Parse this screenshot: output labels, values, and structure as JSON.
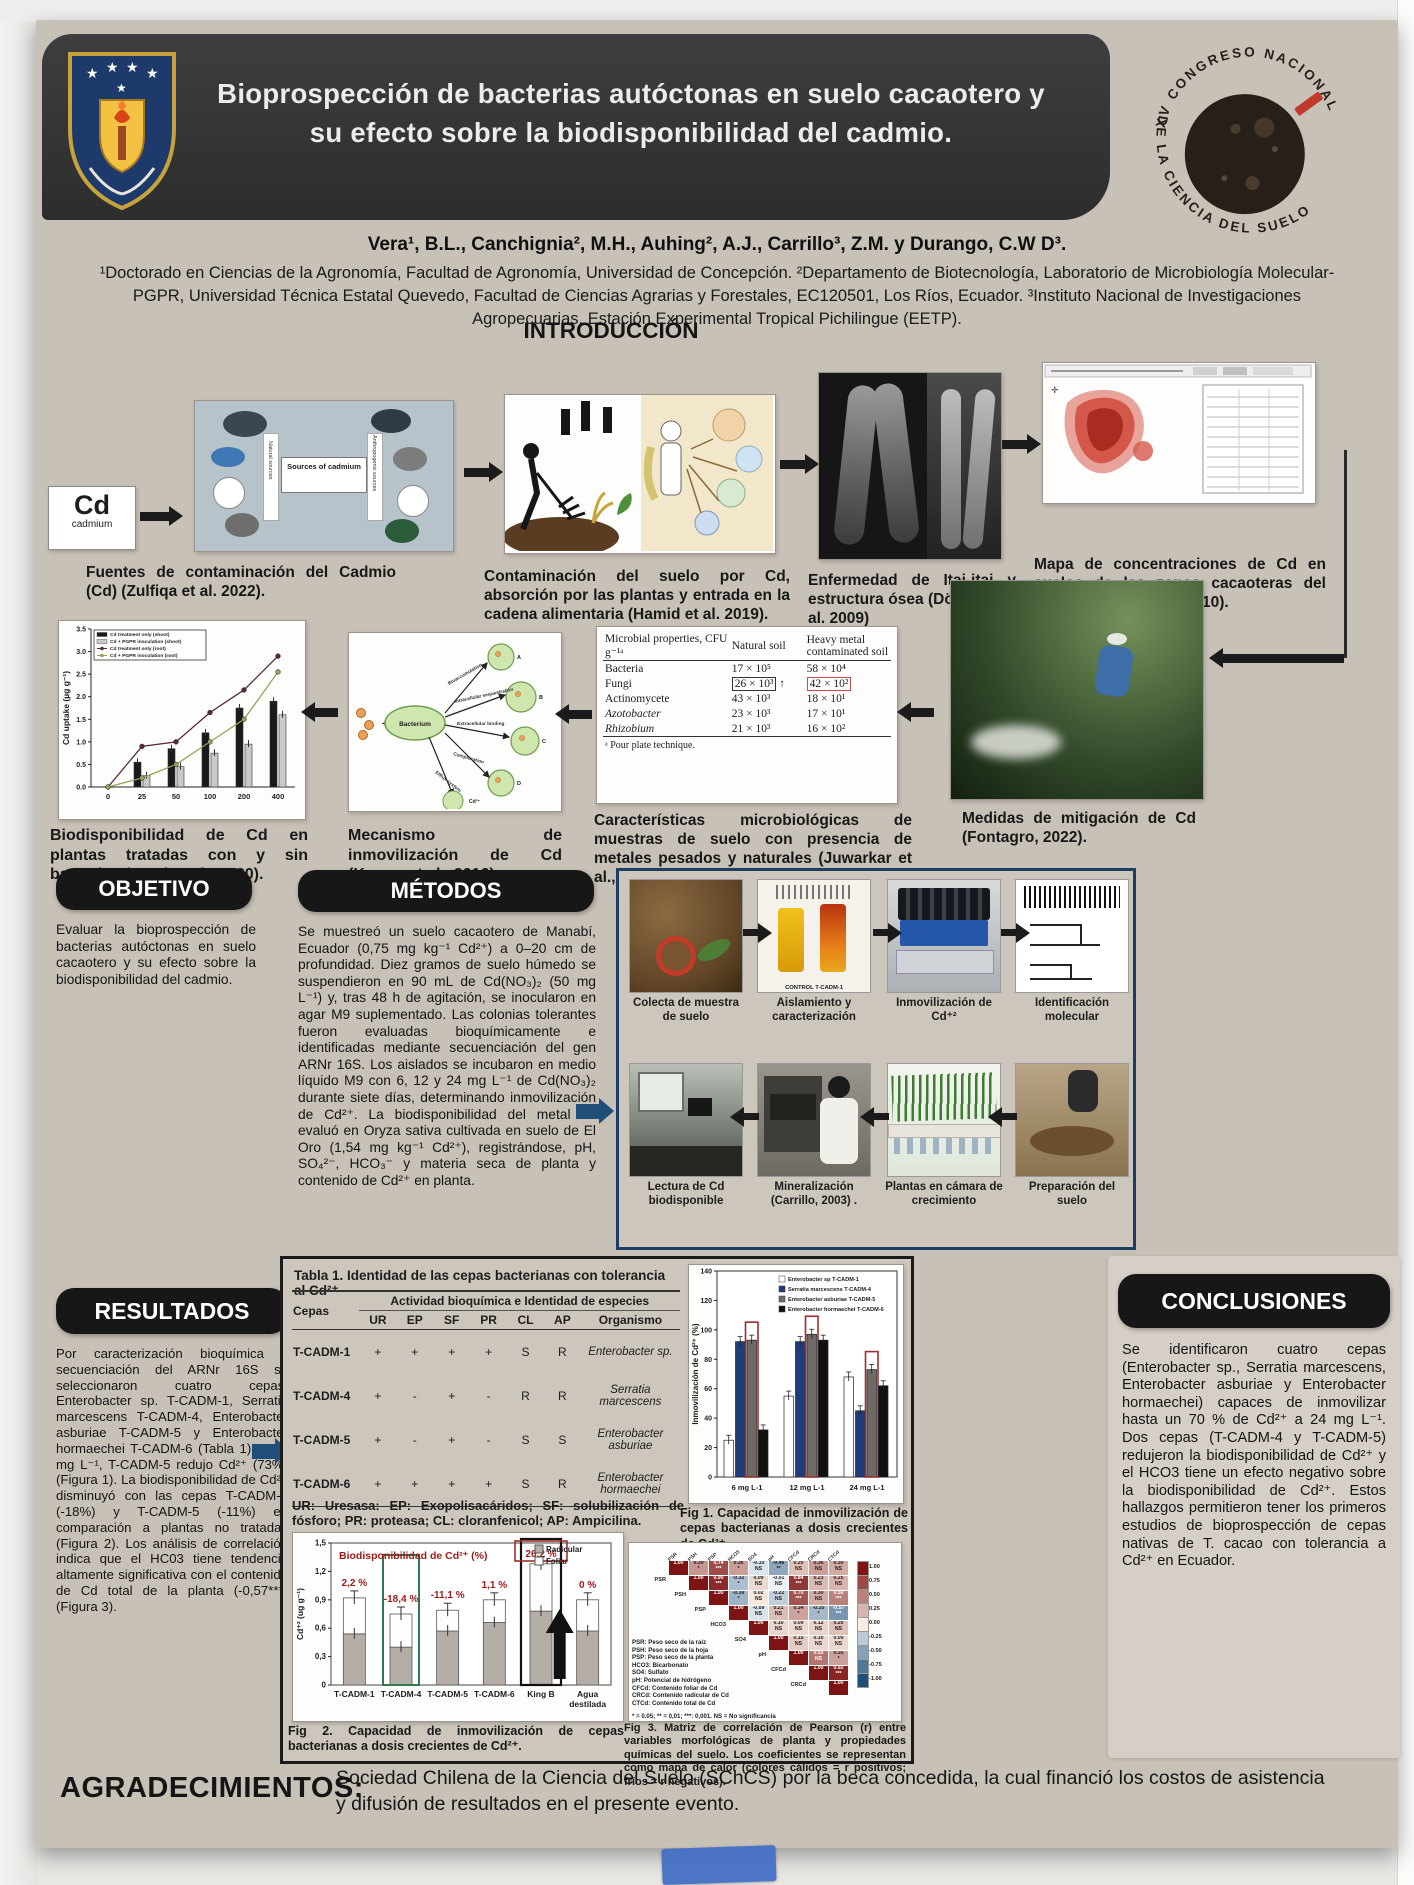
{
  "header": {
    "title": "Bioprospección de bacterias autóctonas en suelo cacaotero y su efecto sobre la biodisponibilidad del cadmio.",
    "badge_top": "XV CONGRESO NACIONAL",
    "badge_bottom": "DE LA CIENCIA DEL SUELO"
  },
  "authors": "Vera¹, B.L., Canchignia², M.H., Auhing², A.J., Carrillo³, Z.M. y Durango, C.W D³.",
  "affiliations": "¹Doctorado en Ciencias de la Agronomía, Facultad de Agronomía, Universidad de Concepción.  ²Departamento de Biotecnología, Laboratorio de Microbiología Molecular-PGPR, Universidad Técnica Estatal Quevedo, Facultad de Ciencias Agrarias y Forestales, EC120501, Los Ríos, Ecuador. ³Instituto Nacional de Investigaciones Agropecuarias. Estación Experimental Tropical Pichilingue (EETP).",
  "intro": {
    "heading": "INTRODUCCIÓN",
    "cd_symbol": "Cd",
    "cd_name": "cadmium",
    "fig_sources": {
      "center_label": "Sources of cadmium",
      "left_label": "Natural sources",
      "right_label": "Anthropogenic sources",
      "caption": "Fuentes de contaminación del Cadmio (Cd) (Zulfiqa et al. 2022)."
    },
    "fig_contamination": {
      "caption": "Contaminación del suelo por Cd, absorción por las plantas y entrada en la cadena alimentaria (Hamid et al. 2019)."
    },
    "fig_itai": {
      "caption": "Enfermedad de Itai-itai y estructura ósea (Dökmeci et al. 2009)"
    },
    "fig_map": {
      "caption": "Mapa de concentraciones de Cd en suelos de las zonas cacaoteras del Ecuador (Mite et al., 2010)."
    },
    "uptake_chart": {
      "type": "bar+line",
      "ylabel": "Cd uptake (µg g⁻¹)",
      "ymax": 3.5,
      "yticks": [
        "0.0",
        "0.5",
        "1.0",
        "1.5",
        "2.0",
        "2.5",
        "3.0",
        "3.5"
      ],
      "x": [
        "0",
        "25",
        "50",
        "100",
        "200",
        "400"
      ],
      "series": [
        {
          "name": "Cd treatment only (shoot)",
          "kind": "bar",
          "color": "#1a1a1a",
          "values": [
            0,
            0.55,
            0.85,
            1.2,
            1.75,
            1.9
          ]
        },
        {
          "name": "Cd + PGPR inoculation (shoot)",
          "kind": "bar",
          "color": "#c9c9c9",
          "values": [
            0,
            0.25,
            0.45,
            0.75,
            0.95,
            1.6
          ]
        },
        {
          "name": "Cd treatment only (root)",
          "kind": "line",
          "color": "#5a2a33",
          "values": [
            0,
            0.9,
            1.0,
            1.65,
            2.15,
            2.9
          ]
        },
        {
          "name": "Cd + PGPR inoculation (root)",
          "kind": "line",
          "color": "#9aa05a",
          "values": [
            0,
            0.2,
            0.5,
            1.0,
            1.5,
            2.55
          ]
        }
      ],
      "caption": "Biodisponibilidad de Cd en plantas tratadas con y sin bacterias (Syed et al., 2020)."
    },
    "mechanism": {
      "center": "Bacterium",
      "ion": "Cd²⁺",
      "labels": [
        "Bioaccumulation",
        "Intracellular sequestration",
        "Extracellular binding",
        "Complexation",
        "Efflux system"
      ],
      "caption": "Mecanismo de inmovilización de Cd (Kumar et al., 2016)."
    },
    "microbial_table": {
      "col1": "Microbial properties, CFU g⁻¹ᵃ",
      "col2": "Natural soil",
      "col3": "Heavy metal contaminated soil",
      "rows": [
        [
          "Bacteria",
          "17 × 10⁵",
          "58 × 10⁴"
        ],
        [
          "Fungi",
          "26 × 10³",
          "42 × 10²"
        ],
        [
          "Actinomycete",
          "43 × 10³",
          "18 × 10¹"
        ],
        [
          "Azotobacter",
          "23 × 10³",
          "17 × 10¹"
        ],
        [
          "Rhizobium",
          "21 × 10³",
          "16 × 10²"
        ]
      ],
      "footnote": "ᵃ Pour plate technique.",
      "caption": "Características microbiológicas de muestras de suelo con presencia de metales pesados y naturales (Juwarkar et al., 2007)."
    },
    "fig_mitigation": {
      "caption": "Medidas de mitigación de Cd (Fontagro, 2022)."
    }
  },
  "objetivo": {
    "heading": "OBJETIVO",
    "text": "Evaluar la bioprospección de bacterias autóctonas en suelo cacaotero y su efecto sobre la biodisponibilidad del cadmio."
  },
  "metodos": {
    "heading": "MÉTODOS",
    "text": "Se muestreó un suelo cacaotero de Manabí, Ecuador (0,75 mg kg⁻¹ Cd²⁺) a 0–20 cm de profundidad. Diez gramos de suelo húmedo se suspendieron en 90 mL de Cd(NO₃)₂ (50 mg L⁻¹) y, tras 48 h de agitación, se inocularon en agar M9 suplementado. Las colonias tolerantes fueron evaluadas bioquímicamente e identificadas mediante secuenciación del gen ARNr 16S. Los aislados se incubaron en medio líquido M9 con 6, 12 y 24 mg L⁻¹ de Cd(NO₃)₂ durante siete días, determinando inmovilización de Cd²⁺. La biodisponibilidad del metal se evaluó en Oryza sativa cultivada en suelo de El Oro (1,54 mg kg⁻¹ Cd²⁺), registrándose, pH, SO₄²⁻, HCO₃⁻ y materia seca de planta y contenido de Cd²⁺ en planta.",
    "workflow_top": [
      {
        "label": "Colecta de muestra de suelo",
        "art": "colecta"
      },
      {
        "label": "Aislamiento y caracterización",
        "art": "aislamiento",
        "sub": "CONTROL   T-CADM-1"
      },
      {
        "label": "Inmovilización de Cd⁺²",
        "art": "inmovilizacion"
      },
      {
        "label": "Identificación molecular",
        "art": "identificacion"
      }
    ],
    "workflow_bottom": [
      {
        "label": "Lectura de Cd biodisponible",
        "art": "lectura"
      },
      {
        "label": "Mineralización (Carrillo, 2003) .",
        "art": "mineralizacion"
      },
      {
        "label": "Plantas en cámara de crecimiento",
        "art": "plantas"
      },
      {
        "label": "Preparación del suelo",
        "art": "preparacion"
      }
    ]
  },
  "resultados": {
    "heading": "RESULTADOS",
    "text": "Por caracterización bioquímica y secuenciación del ARNr 16S se seleccionaron cuatro cepas: Enterobacter sp. T-CADM-1, Serratia marcescens T-CADM-4, Enterobacter asburiae T-CADM-5 y Enterobacter hormaechei T-CADM-6 (Tabla 1). A 24 mg L⁻¹, T-CADM-5 redujo Cd²⁺ (73%) (Figura 1). La biodisponibilidad de Cd²⁺ disminuyó con las cepas T-CADM-4 (-18%) y T-CADM-5 (-11%) en comparación a plantas no tratadas (Figura 2). Los análisis de correlación indica que el HC03 tiene tendencia altamente significativa con el contenido de Cd total de la planta (-0,57***) (Figura 3).",
    "tabla1": {
      "title": "Tabla 1. Identidad de las cepas bacterianas con tolerancia al Cd²⁺",
      "group_header": "Actividad bioquímica e Identidad de especies",
      "col_cepas": "Cepas",
      "cols": [
        "UR",
        "EP",
        "SF",
        "PR",
        "CL",
        "AP"
      ],
      "col_org": "Organismo",
      "rows": [
        {
          "cepa": "T-CADM-1",
          "vals": [
            "+",
            "+",
            "+",
            "+",
            "S",
            "R"
          ],
          "org": "Enterobacter sp."
        },
        {
          "cepa": "T-CADM-4",
          "vals": [
            "+",
            "-",
            "+",
            "-",
            "R",
            "R"
          ],
          "org": "Serratia marcescens"
        },
        {
          "cepa": "T-CADM-5",
          "vals": [
            "+",
            "-",
            "+",
            "-",
            "S",
            "S"
          ],
          "org": "Enterobacter asburiae"
        },
        {
          "cepa": "T-CADM-6",
          "vals": [
            "+",
            "+",
            "+",
            "+",
            "S",
            "R"
          ],
          "org": "Enterobacter hormaechei"
        }
      ],
      "footnote": "UR: Uresasa: EP: Exopolisacáridos; SF: solubilización de fósforo; PR: proteasa; CL: cloranfenicol; AP: Ampicilina."
    },
    "fig1": {
      "type": "bar",
      "ylabel": "Inmovilización de Cd²⁺ (%)",
      "ymax": 140,
      "yticks": [
        0,
        20,
        40,
        60,
        80,
        100,
        120,
        140
      ],
      "groups": [
        "6 mg L-1",
        "12 mg L-1",
        "24 mg L-1"
      ],
      "series": [
        {
          "name": "Enterobacter sp T-CADM-1",
          "color": "#ffffff",
          "values": [
            25,
            55,
            68
          ]
        },
        {
          "name": "Serratia marcescens T-CADM-4",
          "color": "#1f3d7a",
          "values": [
            92,
            92,
            45
          ]
        },
        {
          "name": "Enterobacter asburiae T-CADM-5",
          "color": "#6e6a66",
          "values": [
            93,
            97,
            73
          ],
          "highlight": true
        },
        {
          "name": "Enterobacter hormaechei T-CADM-6",
          "color": "#111111",
          "values": [
            32,
            93,
            62
          ]
        }
      ],
      "caption": "Fig 1. Capacidad de inmovilización de cepas bacterianas a dosis crecientes de Cd²⁺."
    },
    "fig2": {
      "type": "stacked-bar",
      "title": "Biodisponibilidad de Cd²⁺ (%)",
      "ylabel": "Cd⁺² (ug g⁻¹)",
      "ymax": 1.5,
      "yticks": [
        "0",
        "0,3",
        "0,6",
        "0,9",
        "1,2",
        "1,5"
      ],
      "categories": [
        "T-CADM-1",
        "T-CADM-4",
        "T-CADM-5",
        "T-CADM-6",
        "King B",
        "Agua destilada"
      ],
      "radicular": [
        0.54,
        0.4,
        0.57,
        0.66,
        0.78,
        0.57
      ],
      "foliar": [
        0.38,
        0.35,
        0.22,
        0.24,
        0.5,
        0.33
      ],
      "pct_labels": [
        "2,2 %",
        "-18,4 %",
        "-11,1 %",
        "1,1 %",
        "26,2 %",
        "0 %"
      ],
      "legend": [
        "Radicular",
        "Foliar"
      ],
      "caption": "Fig 2. Capacidad de inmovilización de cepas bacterianas a dosis crecientes de Cd²⁺."
    },
    "fig3": {
      "type": "heatmap",
      "labels": [
        "PSR",
        "PSH",
        "PSP",
        "HCO3",
        "SO4",
        "pH",
        "CFCd",
        "CRCd",
        "CTCd"
      ],
      "matrix_values": [
        [
          0.39,
          0.74,
          0.36,
          -0.1,
          -0.46,
          0.2,
          0.36,
          0.3
        ],
        [
          0.9,
          -0.32,
          0.09,
          -0.01,
          0.84,
          0.23,
          0.25
        ],
        [
          -0.39,
          0.02,
          -0.22,
          0.7,
          0.3,
          0.5
        ],
        [
          -0.09,
          0.21,
          0.34,
          -0.35,
          -0.57
        ],
        [
          0.1,
          0.09,
          0.12,
          0.2
        ],
        [
          0.15,
          0.1,
          0.09
        ],
        [
          0.55,
          0.35
        ],
        [
          0.92
        ],
        []
      ],
      "matrix_sigs": [
        [
          "*",
          "***",
          "*",
          "NS",
          "**",
          "NS",
          "NS",
          "NS"
        ],
        [
          "***",
          "*",
          "NS",
          "NS",
          "***",
          "NS",
          "NS"
        ],
        [
          "*",
          "NS",
          "NS",
          "***",
          "NS",
          "***"
        ],
        [
          "NS",
          "NS",
          "*",
          "*",
          "***"
        ],
        [
          "NS",
          "NS",
          "NS",
          "NS"
        ],
        [
          "NS",
          "NS",
          "NS"
        ],
        [
          "NS",
          "*"
        ],
        [
          "***"
        ],
        []
      ],
      "scale_ticks": [
        "1.00",
        "0.75",
        "0.50",
        "0.25",
        "0.00",
        "-0.25",
        "-0.50",
        "-0.75",
        "-1.00"
      ],
      "legend": [
        "PSR: Peso seco de la raíz",
        "PSH: Peso seco de la hoja",
        "PSP: Peso seco de la planta",
        "HCO3: Bicarbonato",
        "SO4: Sulfato",
        "pH: Potencial de hidrógeno",
        "CFCd: Contenido foliar de Cd",
        "CRCd: Contenido radicular de Cd",
        "CTCd: Contenido total de Cd"
      ],
      "note": "* = 0.05; ** = 0,01; ***: 0,001. NS = No significancia",
      "caption": "Fig 3. Matriz de correlación de Pearson (r) entre variables morfológicas de planta y propiedades químicas del suelo. Los coeficientes se representan como mapa de calor (colores cálidos = r positivos; fríos = r negativos)."
    }
  },
  "conclusiones": {
    "heading": "CONCLUSIONES",
    "text": "Se identificaron cuatro cepas (Enterobacter sp., Serratia marcescens, Enterobacter asburiae y Enterobacter hormaechei) capaces de inmovilizar hasta un 70 % de Cd²⁺ a 24 mg L⁻¹. Dos cepas (T-CADM-4 y T-CADM-5) redujeron la biodisponibilidad de Cd²⁺ y el HCO3 tiene un efecto negativo sobre la biodisponibilidad de Cd²⁺. Estos hallazgos permitieron tener los primeros estudios de bioprospección de cepas nativas de T. cacao con tolerancia a Cd²⁺ en Ecuador."
  },
  "agradecimientos": {
    "heading": "AGRADECIMIENTOS:",
    "text": "Sociedad Chilena de la Ciencia del Suelo (SChCS) por la beca concedida, la cual financió los costos de asistencia y difusión de resultados en el presente evento."
  }
}
